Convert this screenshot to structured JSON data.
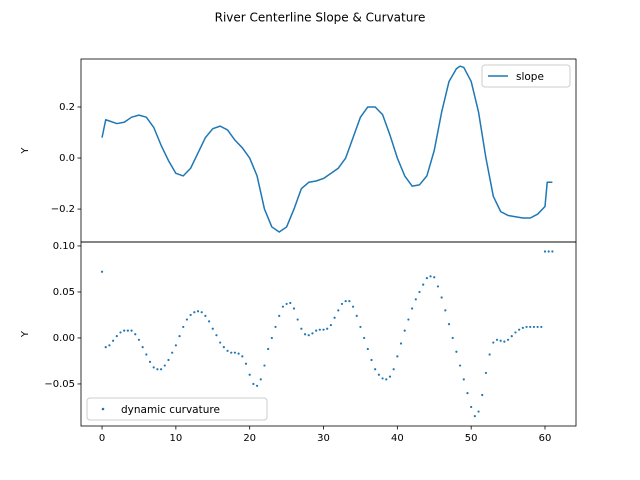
{
  "title": "River Centerline Slope & Curvature",
  "chart_data": [
    {
      "type": "line",
      "ylabel": "Y",
      "x": [
        0,
        0.5,
        1,
        2,
        3,
        4,
        5,
        6,
        7,
        8,
        9,
        10,
        11,
        12,
        13,
        14,
        15,
        16,
        17,
        18,
        19,
        20,
        21,
        22,
        23,
        24,
        25,
        26,
        27,
        28,
        29,
        30,
        31,
        32,
        33,
        34,
        35,
        36,
        37,
        38,
        39,
        40,
        41,
        42,
        43,
        44,
        45,
        46,
        47,
        48,
        48.5,
        49,
        50,
        51,
        52,
        53,
        54,
        55,
        56,
        57,
        58,
        59,
        60,
        60.3,
        61
      ],
      "series": [
        {
          "name": "slope",
          "color": "#1f77b4",
          "values": [
            0.08,
            0.15,
            0.145,
            0.135,
            0.14,
            0.16,
            0.168,
            0.16,
            0.12,
            0.05,
            -0.01,
            -0.06,
            -0.07,
            -0.04,
            0.02,
            0.08,
            0.115,
            0.125,
            0.11,
            0.07,
            0.04,
            0.0,
            -0.07,
            -0.2,
            -0.27,
            -0.29,
            -0.27,
            -0.2,
            -0.12,
            -0.095,
            -0.09,
            -0.08,
            -0.06,
            -0.04,
            0.0,
            0.08,
            0.16,
            0.2,
            0.2,
            0.17,
            0.09,
            0.0,
            -0.07,
            -0.11,
            -0.105,
            -0.07,
            0.03,
            0.18,
            0.3,
            0.35,
            0.36,
            0.355,
            0.3,
            0.18,
            0.0,
            -0.15,
            -0.21,
            -0.225,
            -0.23,
            -0.235,
            -0.235,
            -0.22,
            -0.19,
            -0.095,
            -0.095
          ]
        }
      ],
      "xlim": [
        -2.85,
        64.2
      ],
      "ylim": [
        -0.329,
        0.388
      ],
      "yticks": [
        {
          "value": -0.2,
          "label": "−0.2"
        },
        {
          "value": 0,
          "label": "0.0"
        },
        {
          "value": 0.2,
          "label": "0.2"
        }
      ],
      "legend": "upper right"
    },
    {
      "type": "scatter",
      "ylabel": "Y",
      "x": [
        0,
        0.5,
        1,
        1.5,
        2,
        2.5,
        3,
        3.5,
        4,
        4.5,
        5,
        5.5,
        6,
        6.5,
        7,
        7.5,
        8,
        8.5,
        9,
        9.5,
        10,
        10.5,
        11,
        11.5,
        12,
        12.5,
        13,
        13.5,
        14,
        14.5,
        15,
        15.5,
        16,
        16.5,
        17,
        17.5,
        18,
        18.5,
        19,
        19.5,
        20,
        20.5,
        21,
        21.5,
        22,
        22.5,
        23,
        23.5,
        24,
        24.5,
        25,
        25.5,
        26,
        26.5,
        27,
        27.5,
        28,
        28.5,
        29,
        29.5,
        30,
        30.5,
        31,
        31.5,
        32,
        32.5,
        33,
        33.5,
        34,
        34.5,
        35,
        35.5,
        36,
        36.5,
        37,
        37.5,
        38,
        38.5,
        39,
        39.5,
        40,
        40.5,
        41,
        41.5,
        42,
        42.5,
        43,
        43.5,
        44,
        44.5,
        45,
        45.5,
        46,
        46.5,
        47,
        47.5,
        48,
        48.5,
        49,
        49.5,
        50,
        50.5,
        51,
        51.5,
        52,
        52.5,
        53,
        53.5,
        54,
        54.5,
        55,
        55.5,
        56,
        56.5,
        57,
        57.5,
        58,
        58.5,
        59,
        59.5,
        60,
        60.5,
        61
      ],
      "series": [
        {
          "name": "dynamic curvature",
          "color": "#1f77b4",
          "values": [
            0.072,
            -0.01,
            -0.008,
            -0.003,
            0.002,
            0.006,
            0.008,
            0.008,
            0.008,
            0.004,
            -0.002,
            -0.01,
            -0.018,
            -0.026,
            -0.032,
            -0.034,
            -0.034,
            -0.03,
            -0.024,
            -0.016,
            -0.008,
            0.002,
            0.012,
            0.02,
            0.025,
            0.028,
            0.029,
            0.028,
            0.024,
            0.018,
            0.01,
            0.003,
            -0.005,
            -0.01,
            -0.014,
            -0.016,
            -0.016,
            -0.017,
            -0.02,
            -0.028,
            -0.04,
            -0.05,
            -0.052,
            -0.045,
            -0.03,
            -0.012,
            0.0,
            0.012,
            0.024,
            0.034,
            0.037,
            0.038,
            0.032,
            0.02,
            0.01,
            0.004,
            0.003,
            0.005,
            0.008,
            0.009,
            0.009,
            0.01,
            0.014,
            0.022,
            0.03,
            0.037,
            0.04,
            0.04,
            0.034,
            0.024,
            0.012,
            0.0,
            -0.012,
            -0.024,
            -0.034,
            -0.04,
            -0.044,
            -0.045,
            -0.042,
            -0.034,
            -0.02,
            -0.006,
            0.008,
            0.02,
            0.032,
            0.042,
            0.05,
            0.058,
            0.065,
            0.067,
            0.066,
            0.056,
            0.044,
            0.03,
            0.015,
            0.0,
            -0.015,
            -0.03,
            -0.045,
            -0.06,
            -0.075,
            -0.085,
            -0.08,
            -0.062,
            -0.038,
            -0.018,
            -0.005,
            -0.002,
            -0.003,
            -0.004,
            -0.002,
            0.002,
            0.006,
            0.009,
            0.011,
            0.012,
            0.012,
            0.012,
            0.012,
            0.012,
            0.094,
            0.094,
            0.094
          ]
        }
      ],
      "xlim": [
        -2.85,
        64.2
      ],
      "ylim": [
        -0.0957,
        0.1043
      ],
      "yticks": [
        {
          "value": -0.05,
          "label": "−0.05"
        },
        {
          "value": 0,
          "label": "0.00"
        },
        {
          "value": 0.05,
          "label": "0.05"
        },
        {
          "value": 0.1,
          "label": "0.10"
        }
      ],
      "xticks": [
        0,
        10,
        20,
        30,
        40,
        50,
        60
      ],
      "legend": "lower left"
    }
  ]
}
